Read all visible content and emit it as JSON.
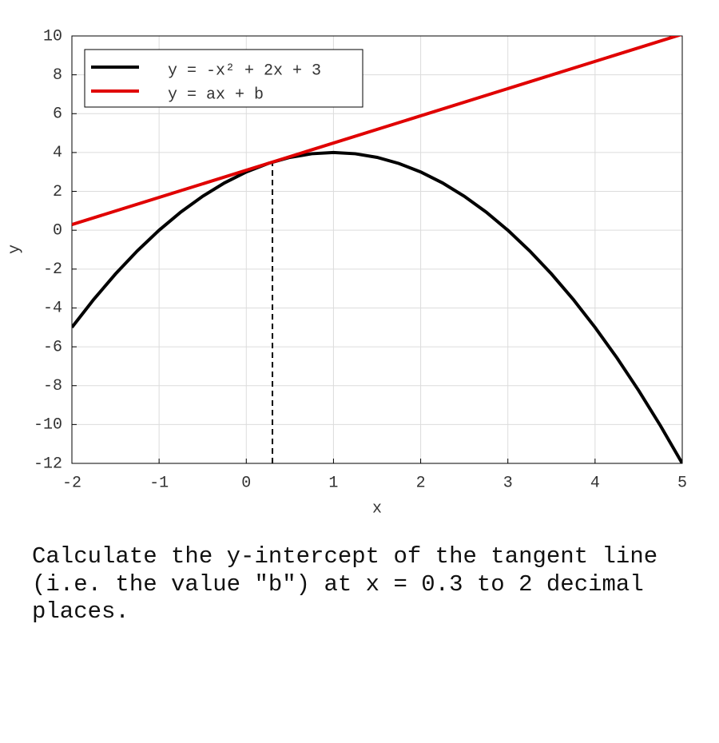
{
  "chart_data": {
    "type": "line",
    "xlabel": "x",
    "ylabel": "y",
    "xlim": [
      -2,
      5
    ],
    "ylim": [
      -12,
      10
    ],
    "xticks": [
      -2,
      -1,
      0,
      1,
      2,
      3,
      4,
      5
    ],
    "yticks": [
      -12,
      -10,
      -8,
      -6,
      -4,
      -2,
      0,
      2,
      4,
      6,
      8,
      10
    ],
    "grid": true,
    "legend": "upper left",
    "series": [
      {
        "name": "y = -x² + 2x + 3",
        "color": "#000000",
        "x": [
          -2,
          -1.75,
          -1.5,
          -1.25,
          -1,
          -0.75,
          -0.5,
          -0.25,
          0,
          0.25,
          0.5,
          0.75,
          1,
          1.25,
          1.5,
          1.75,
          2,
          2.25,
          2.5,
          2.75,
          3,
          3.25,
          3.5,
          3.75,
          4,
          4.25,
          4.5,
          4.75,
          5
        ],
        "values": [
          -5,
          -3.5625,
          -2.25,
          -1.0625,
          0,
          0.9375,
          1.75,
          2.4375,
          3,
          3.4375,
          3.75,
          3.9375,
          4,
          3.9375,
          3.75,
          3.4375,
          3,
          2.4375,
          1.75,
          0.9375,
          0,
          -1.0625,
          -2.25,
          -3.5625,
          -5,
          -6.5625,
          -8.25,
          -10.0625,
          -12
        ]
      },
      {
        "name": "y = ax + b",
        "color": "#e00000",
        "x": [
          -2,
          5
        ],
        "values": [
          0.29,
          10.09
        ]
      }
    ],
    "marker": {
      "x": 0.3,
      "y": 3.51
    }
  },
  "question": "Calculate the y-intercept of the tangent line (i.e. the value \"b\") at x = 0.3 to 2 decimal places."
}
